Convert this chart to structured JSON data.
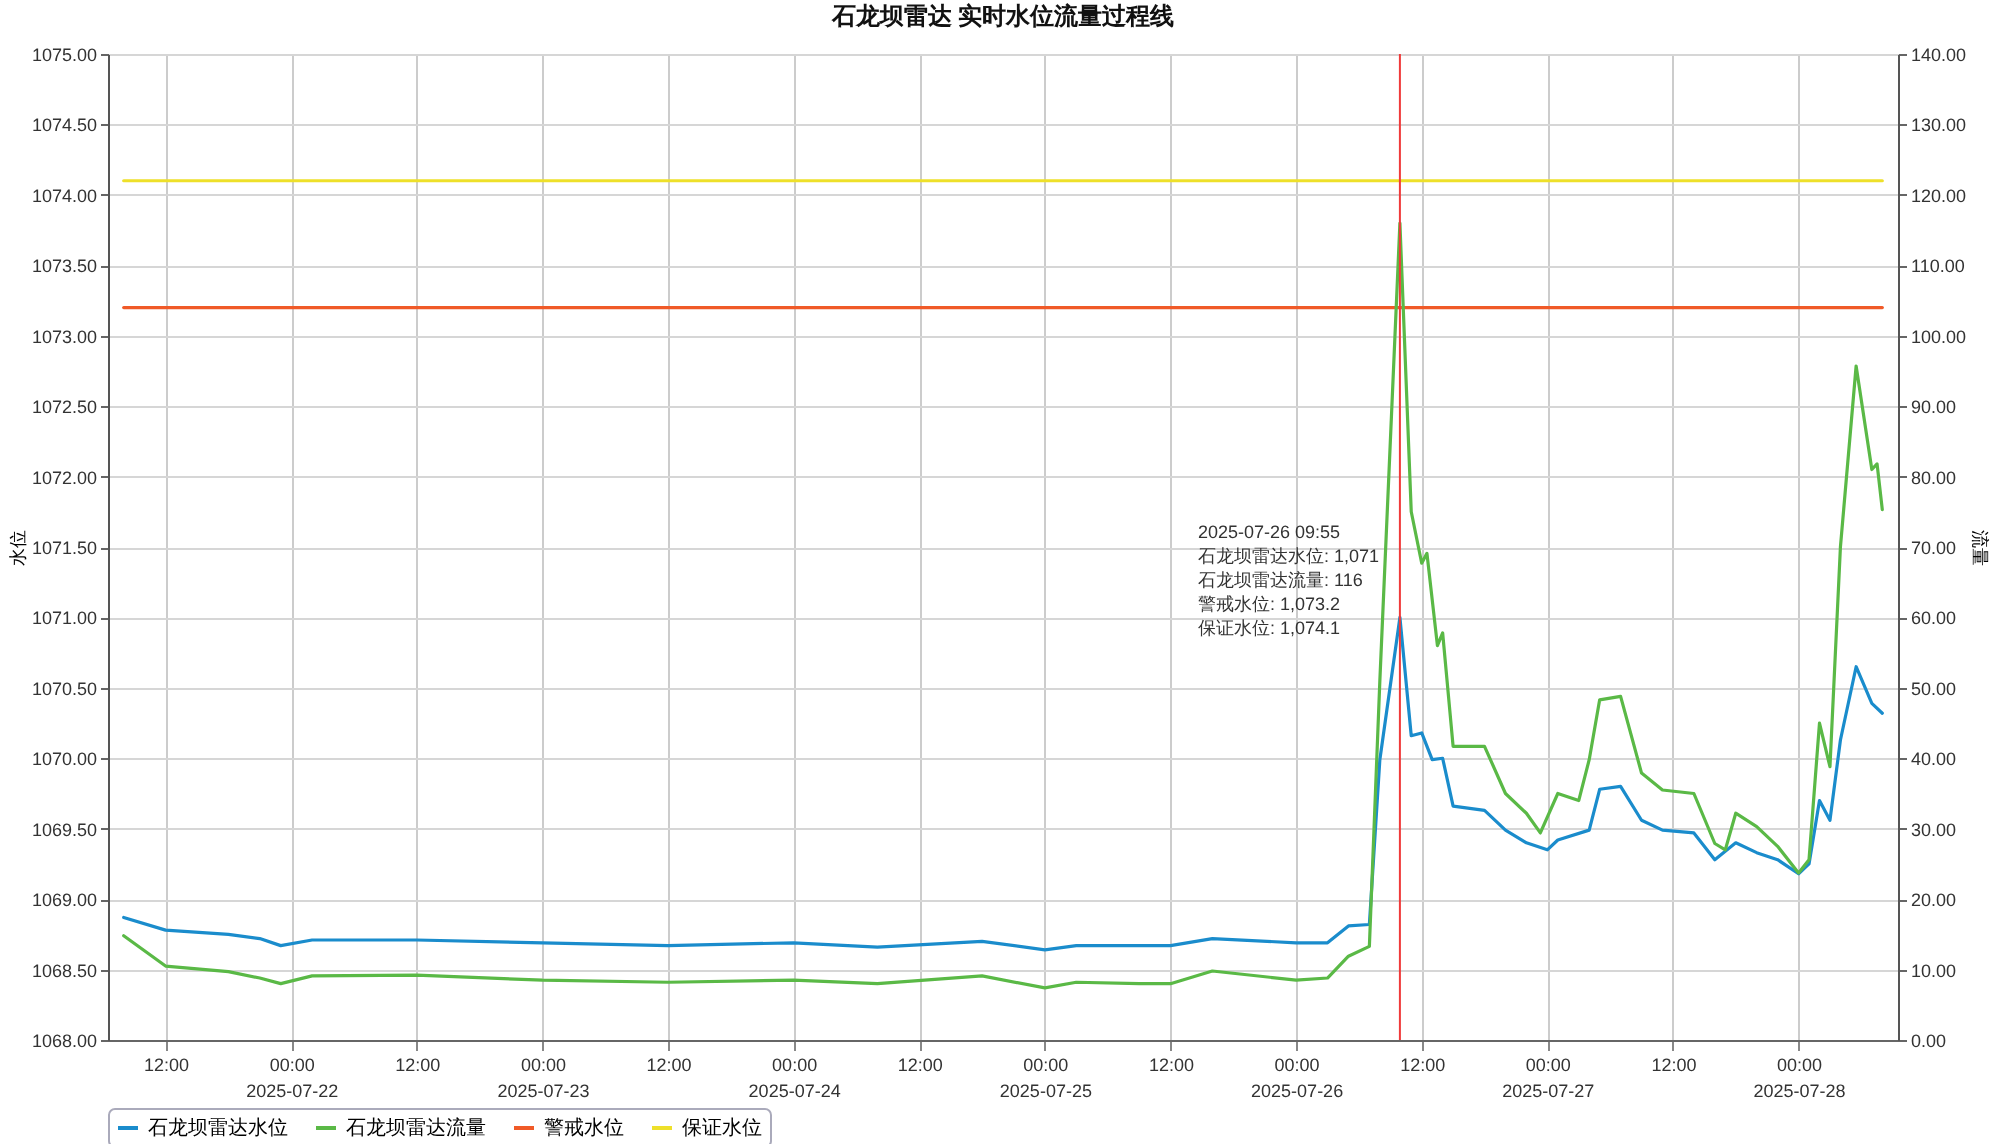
{
  "chart_data": {
    "type": "line",
    "title": "石龙坝雷达 实时水位流量过程线",
    "ylabel": "水位",
    "y2label": "流量",
    "xlim": [
      "2025-07-21T06:30",
      "2025-07-28T09:30"
    ],
    "xticks": [
      {
        "value": "2025-07-21T12:00",
        "label": "12:00"
      },
      {
        "value": "2025-07-22T00:00",
        "label": "00:00\n2025-07-22"
      },
      {
        "value": "2025-07-22T12:00",
        "label": "12:00"
      },
      {
        "value": "2025-07-23T00:00",
        "label": "00:00\n2025-07-23"
      },
      {
        "value": "2025-07-23T12:00",
        "label": "12:00"
      },
      {
        "value": "2025-07-24T00:00",
        "label": "00:00\n2025-07-24"
      },
      {
        "value": "2025-07-24T12:00",
        "label": "12:00"
      },
      {
        "value": "2025-07-25T00:00",
        "label": "00:00\n2025-07-25"
      },
      {
        "value": "2025-07-25T12:00",
        "label": "12:00"
      },
      {
        "value": "2025-07-26T00:00",
        "label": "00:00\n2025-07-26"
      },
      {
        "value": "2025-07-26T12:00",
        "label": "12:00"
      },
      {
        "value": "2025-07-27T00:00",
        "label": "00:00\n2025-07-27"
      },
      {
        "value": "2025-07-27T12:00",
        "label": "12:00"
      },
      {
        "value": "2025-07-28T00:00",
        "label": "00:00\n2025-07-28"
      }
    ],
    "ylim": [
      1068,
      1075
    ],
    "yticks": [
      {
        "value": 1068,
        "label": "1068.00"
      },
      {
        "value": 1068.5,
        "label": "1068.50"
      },
      {
        "value": 1069,
        "label": "1069.00"
      },
      {
        "value": 1069.5,
        "label": "1069.50"
      },
      {
        "value": 1070,
        "label": "1070.00"
      },
      {
        "value": 1070.5,
        "label": "1070.50"
      },
      {
        "value": 1071,
        "label": "1071.00"
      },
      {
        "value": 1071.5,
        "label": "1071.50"
      },
      {
        "value": 1072,
        "label": "1072.00"
      },
      {
        "value": 1072.5,
        "label": "1072.50"
      },
      {
        "value": 1073,
        "label": "1073.00"
      },
      {
        "value": 1073.5,
        "label": "1073.50"
      },
      {
        "value": 1074,
        "label": "1074.00"
      },
      {
        "value": 1074.5,
        "label": "1074.50"
      },
      {
        "value": 1075,
        "label": "1075.00"
      }
    ],
    "y2lim": [
      0,
      140
    ],
    "y2ticks": [
      {
        "value": 0,
        "label": "0.00"
      },
      {
        "value": 10,
        "label": "10.00"
      },
      {
        "value": 20,
        "label": "20.00"
      },
      {
        "value": 30,
        "label": "30.00"
      },
      {
        "value": 40,
        "label": "40.00"
      },
      {
        "value": 50,
        "label": "50.00"
      },
      {
        "value": 60,
        "label": "60.00"
      },
      {
        "value": 70,
        "label": "70.00"
      },
      {
        "value": 80,
        "label": "80.00"
      },
      {
        "value": 90,
        "label": "90.00"
      },
      {
        "value": 100,
        "label": "100.00"
      },
      {
        "value": 110,
        "label": "110.00"
      },
      {
        "value": 120,
        "label": "120.00"
      },
      {
        "value": 130,
        "label": "130.00"
      },
      {
        "value": 140,
        "label": "140.00"
      }
    ],
    "grid": true,
    "legend": "bottom",
    "series": [
      {
        "name": "石龙坝雷达水位",
        "color": "#1a8ccc",
        "x": [
          "2025-07-21T08:00",
          "2025-07-21T12:00",
          "2025-07-21T18:00",
          "2025-07-21T21:00",
          "2025-07-21T23:00",
          "2025-07-22T02:00",
          "2025-07-22T12:00",
          "2025-07-23T00:00",
          "2025-07-23T12:00",
          "2025-07-24T00:00",
          "2025-07-24T08:00",
          "2025-07-24T18:00",
          "2025-07-25T00:00",
          "2025-07-25T03:00",
          "2025-07-25T09:00",
          "2025-07-25T12:00",
          "2025-07-25T16:00",
          "2025-07-26T00:00",
          "2025-07-26T03:00",
          "2025-07-26T05:00",
          "2025-07-26T07:00",
          "2025-07-26T08:00",
          "2025-07-26T09:55",
          "2025-07-26T11:00",
          "2025-07-26T12:00",
          "2025-07-26T13:00",
          "2025-07-26T14:00",
          "2025-07-26T15:00",
          "2025-07-26T18:00",
          "2025-07-26T20:00",
          "2025-07-26T22:00",
          "2025-07-27T00:00",
          "2025-07-27T01:00",
          "2025-07-27T04:00",
          "2025-07-27T05:00",
          "2025-07-27T07:00",
          "2025-07-27T09:00",
          "2025-07-27T11:00",
          "2025-07-27T14:00",
          "2025-07-27T16:00",
          "2025-07-27T18:00",
          "2025-07-27T20:00",
          "2025-07-27T22:00",
          "2025-07-28T00:00",
          "2025-07-28T01:00",
          "2025-07-28T02:00",
          "2025-07-28T03:00",
          "2025-07-28T04:00",
          "2025-07-28T05:30",
          "2025-07-28T07:00",
          "2025-07-28T08:00"
        ],
        "values": [
          1068.87,
          1068.78,
          1068.75,
          1068.72,
          1068.67,
          1068.71,
          1068.71,
          1068.69,
          1068.67,
          1068.69,
          1068.66,
          1068.7,
          1068.64,
          1068.67,
          1068.67,
          1068.67,
          1068.72,
          1068.69,
          1068.69,
          1068.81,
          1068.82,
          1069.99,
          1071,
          1070.16,
          1070.18,
          1069.99,
          1070.0,
          1069.66,
          1069.63,
          1069.49,
          1069.4,
          1069.35,
          1069.42,
          1069.49,
          1069.78,
          1069.8,
          1069.56,
          1069.49,
          1069.47,
          1069.28,
          1069.4,
          1069.33,
          1069.28,
          1069.18,
          1069.25,
          1069.7,
          1069.56,
          1070.13,
          1070.65,
          1070.39,
          1070.32
        ]
      },
      {
        "name": "石龙坝雷达流量",
        "color": "#5ab946",
        "axis": "y2",
        "x": [
          "2025-07-21T08:00",
          "2025-07-21T12:00",
          "2025-07-21T18:00",
          "2025-07-21T21:00",
          "2025-07-21T23:00",
          "2025-07-22T02:00",
          "2025-07-22T12:00",
          "2025-07-23T00:00",
          "2025-07-23T12:00",
          "2025-07-24T00:00",
          "2025-07-24T08:00",
          "2025-07-24T18:00",
          "2025-07-25T00:00",
          "2025-07-25T03:00",
          "2025-07-25T09:00",
          "2025-07-25T12:00",
          "2025-07-25T16:00",
          "2025-07-26T00:00",
          "2025-07-26T03:00",
          "2025-07-26T05:00",
          "2025-07-26T07:00",
          "2025-07-26T08:00",
          "2025-07-26T09:55",
          "2025-07-26T11:00",
          "2025-07-26T12:00",
          "2025-07-26T12:30",
          "2025-07-26T13:30",
          "2025-07-26T14:00",
          "2025-07-26T15:00",
          "2025-07-26T18:00",
          "2025-07-26T20:00",
          "2025-07-26T22:00",
          "2025-07-26T23:20",
          "2025-07-27T01:00",
          "2025-07-27T03:00",
          "2025-07-27T04:00",
          "2025-07-27T05:00",
          "2025-07-27T07:00",
          "2025-07-27T09:00",
          "2025-07-27T11:00",
          "2025-07-27T14:00",
          "2025-07-27T16:00",
          "2025-07-27T17:00",
          "2025-07-27T18:00",
          "2025-07-27T20:00",
          "2025-07-27T22:00",
          "2025-07-28T00:00",
          "2025-07-28T01:00",
          "2025-07-28T02:00",
          "2025-07-28T03:00",
          "2025-07-28T04:00",
          "2025-07-28T05:30",
          "2025-07-28T07:00",
          "2025-07-28T07:30",
          "2025-07-28T08:00"
        ],
        "values": [
          14.8,
          10.5,
          9.7,
          8.8,
          8.0,
          9.1,
          9.2,
          8.5,
          8.2,
          8.5,
          8.0,
          9.1,
          7.4,
          8.2,
          8.0,
          8.0,
          9.8,
          8.5,
          8.8,
          11.9,
          13.3,
          51,
          116,
          75,
          67.7,
          69.1,
          56,
          57.8,
          41.7,
          41.7,
          35,
          32.2,
          29.4,
          35,
          34,
          39.8,
          48.3,
          48.8,
          37.9,
          35.5,
          35,
          27.9,
          27,
          32.2,
          30.3,
          27.5,
          23.7,
          25.6,
          45,
          38.8,
          70,
          95.7,
          81,
          81.8,
          75.3
        ]
      },
      {
        "name": "警戒水位",
        "color": "#f05a28",
        "x": [
          "2025-07-21T08:00",
          "2025-07-28T08:00"
        ],
        "values": [
          1073.2,
          1073.2
        ]
      },
      {
        "name": "保证水位",
        "color": "#eee02a",
        "x": [
          "2025-07-21T08:00",
          "2025-07-28T08:00"
        ],
        "values": [
          1074.1,
          1074.1
        ]
      }
    ],
    "ref_lines": [
      {
        "axis": "x",
        "value": "2025-07-26T09:55",
        "color": "#f03a3a"
      }
    ],
    "annotations": [
      "2025-07-26 09:55",
      "石龙坝雷达水位: 1,071",
      "石龙坝雷达流量: 116",
      "警戒水位: 1,073.2",
      "保证水位: 1,074.1"
    ]
  }
}
